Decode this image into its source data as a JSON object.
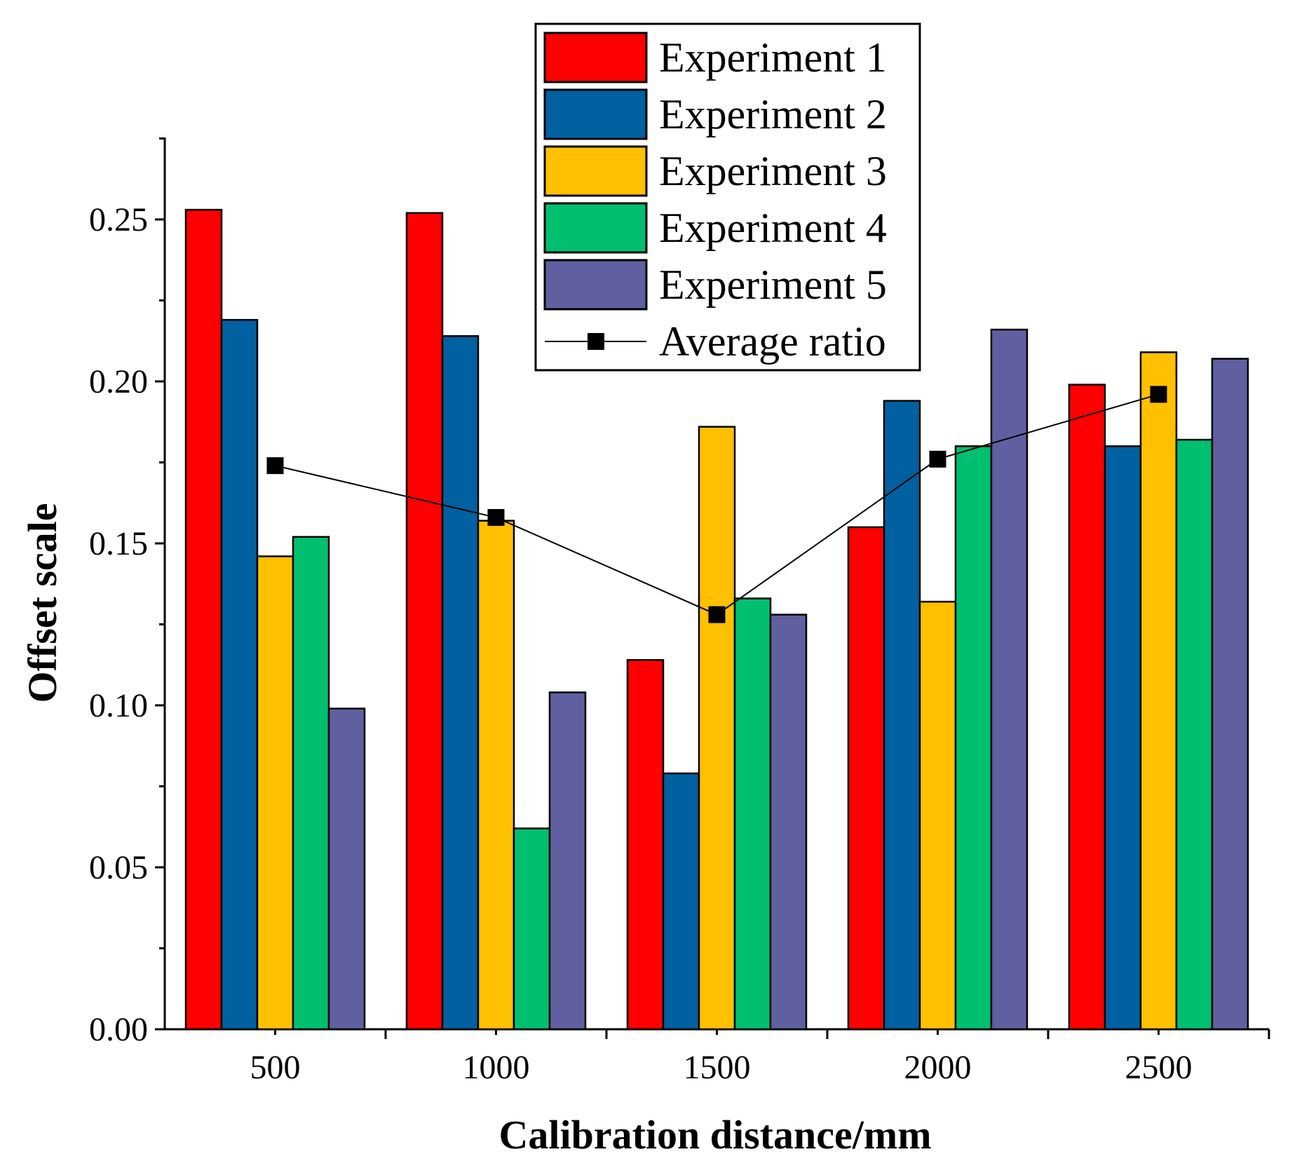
{
  "chart_data": {
    "type": "bar",
    "title": "",
    "xlabel": "Calibration distance/mm",
    "ylabel": "Offset scale",
    "categories": [
      "500",
      "1000",
      "1500",
      "2000",
      "2500"
    ],
    "ylim": [
      0,
      0.275
    ],
    "yticks": [
      "0.00",
      "0.05",
      "0.10",
      "0.15",
      "0.20",
      "0.25"
    ],
    "ytick_values": [
      0,
      0.05,
      0.1,
      0.15,
      0.2,
      0.25
    ],
    "grid": false,
    "legend_position": "top-right",
    "series": [
      {
        "name": "Experiment 1",
        "color": "#ff0000",
        "values": [
          0.253,
          0.252,
          0.114,
          0.155,
          0.199
        ]
      },
      {
        "name": "Experiment 2",
        "color": "#0060a0",
        "values": [
          0.219,
          0.214,
          0.079,
          0.194,
          0.18
        ]
      },
      {
        "name": "Experiment 3",
        "color": "#ffc000",
        "values": [
          0.146,
          0.157,
          0.186,
          0.132,
          0.209
        ]
      },
      {
        "name": "Experiment 4",
        "color": "#00c070",
        "values": [
          0.152,
          0.062,
          0.133,
          0.18,
          0.182
        ]
      },
      {
        "name": "Experiment 5",
        "color": "#6060a0",
        "values": [
          0.099,
          0.104,
          0.128,
          0.216,
          0.207
        ]
      }
    ],
    "line_series": {
      "name": "Average ratio",
      "color": "#000000",
      "marker": "square",
      "values": [
        0.174,
        0.158,
        0.128,
        0.176,
        0.196
      ]
    }
  }
}
